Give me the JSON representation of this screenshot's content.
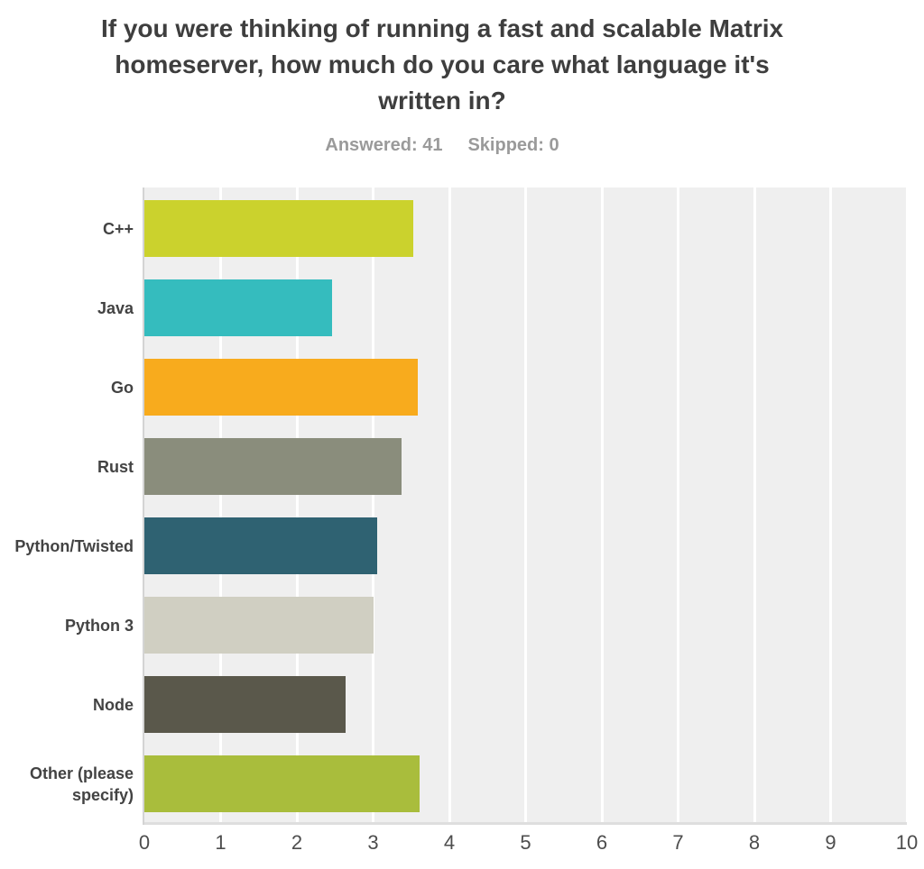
{
  "title": "If you were thinking of running a fast and scalable Matrix homeserver, how much do you care what language it's written in?",
  "stats": {
    "answered": "Answered: 41",
    "skipped": "Skipped: 0"
  },
  "chart_data": {
    "type": "bar",
    "orientation": "horizontal",
    "title": "If you were thinking of running a fast and scalable Matrix homeserver, how much do you care what language it's written in?",
    "categories": [
      "C++",
      "Java",
      "Go",
      "Rust",
      "Python/Twisted",
      "Python 3",
      "Node",
      "Other (please specify)"
    ],
    "values": [
      3.53,
      2.46,
      3.59,
      3.37,
      3.05,
      3.0,
      2.64,
      3.61
    ],
    "colors": [
      "#cbd22d",
      "#35bcbe",
      "#f8ab1d",
      "#8a8d7c",
      "#2f6272",
      "#d0cfc2",
      "#5a584b",
      "#a9bd3c"
    ],
    "xlabel": "",
    "ylabel": "",
    "xlim": [
      0,
      10
    ],
    "xticks": [
      0,
      1,
      2,
      3,
      4,
      5,
      6,
      7,
      8,
      9,
      10
    ],
    "grid": true,
    "legend": "none",
    "plot_background": "#efefef",
    "gridline_color": "#ffffff",
    "title_color": "#3e3e3e",
    "stats_color": "#9a9a9a"
  }
}
